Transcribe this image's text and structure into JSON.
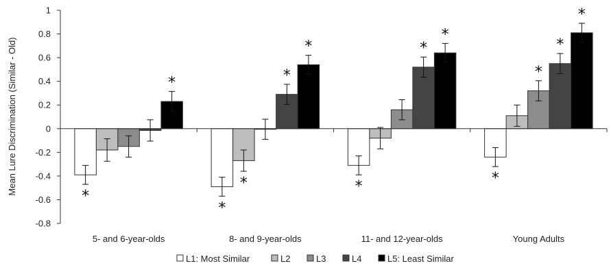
{
  "chart_data": {
    "type": "bar",
    "title": "",
    "xlabel": "",
    "ylabel": "Mean Lure Discrimination (Similar - Old)",
    "ylim": [
      -0.8,
      1
    ],
    "yticks": [
      "1",
      "0.8",
      "0.6",
      "0.4",
      "0.2",
      "0",
      "-0.2",
      "-0.4",
      "-0.6",
      "-0.8"
    ],
    "ytick_values": [
      1,
      0.8,
      0.6,
      0.4,
      0.2,
      0,
      -0.2,
      -0.4,
      -0.6,
      -0.8
    ],
    "grid": false,
    "legend_position": "bottom",
    "categories": [
      "5- and 6-year-olds",
      "8- and 9-year-olds",
      "11- and 12-year-olds",
      "Young Adults"
    ],
    "series": [
      {
        "name": "L1: Most Similar",
        "color": "#ffffff",
        "values": [
          -0.39,
          -0.49,
          -0.31,
          -0.24
        ],
        "errors": [
          0.08,
          0.08,
          0.08,
          0.08
        ],
        "significant": [
          true,
          true,
          true,
          true
        ]
      },
      {
        "name": "L2",
        "color": "#bdbdbd",
        "values": [
          -0.18,
          -0.27,
          -0.08,
          0.11
        ],
        "errors": [
          0.095,
          0.09,
          0.09,
          0.09
        ],
        "significant": [
          false,
          true,
          false,
          false
        ]
      },
      {
        "name": "L3",
        "color": "#8c8c8c",
        "values": [
          -0.15,
          -0.005,
          0.16,
          0.32
        ],
        "errors": [
          0.09,
          0.085,
          0.085,
          0.085
        ],
        "significant": [
          false,
          false,
          false,
          true
        ]
      },
      {
        "name": "L4",
        "color": "#444444",
        "values": [
          -0.015,
          0.29,
          0.52,
          0.55
        ],
        "errors": [
          0.09,
          0.085,
          0.085,
          0.085
        ],
        "significant": [
          false,
          true,
          true,
          true
        ]
      },
      {
        "name": "L5: Least Similar",
        "color": "#000000",
        "values": [
          0.23,
          0.54,
          0.64,
          0.81
        ],
        "errors": [
          0.085,
          0.08,
          0.08,
          0.08
        ],
        "significant": [
          true,
          true,
          true,
          true
        ]
      }
    ],
    "significance_marker": "*"
  }
}
